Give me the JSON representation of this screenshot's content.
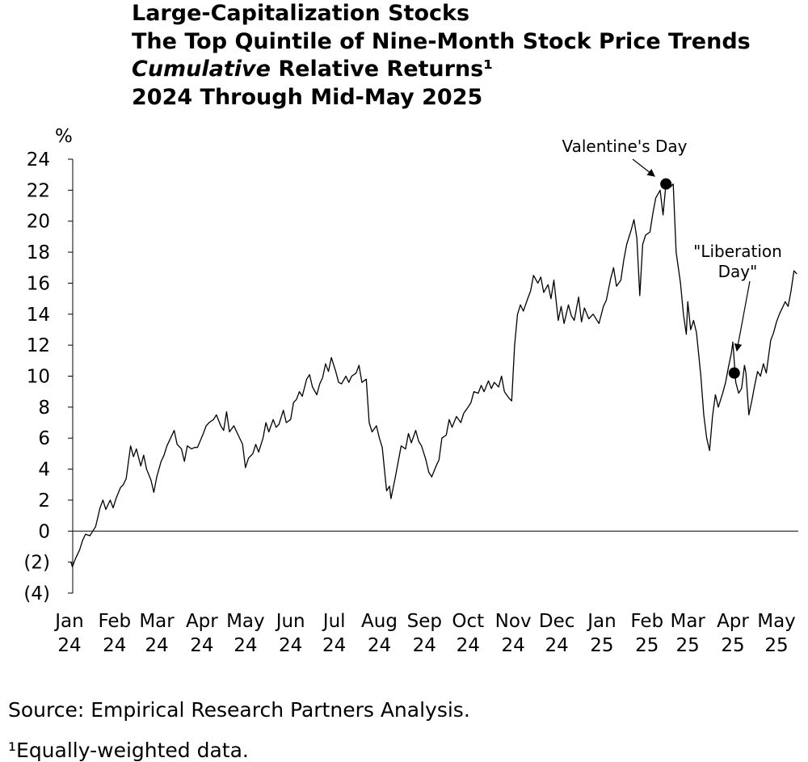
{
  "titles": {
    "line1": "Large-Capitalization Stocks",
    "line2": "The Top Quintile of Nine-Month Stock Price Trends",
    "line3_italic": "Cumulative",
    "line3_rest": " Relative Returns¹",
    "line4": "2024 Through Mid-May 2025"
  },
  "footnotes": {
    "source": "Source: Empirical Research Partners Analysis.",
    "note": "¹Equally-weighted data."
  },
  "chart_data": {
    "type": "line",
    "title": "Large-Capitalization Stocks — The Top Quintile of Nine-Month Stock Price Trends — Cumulative Relative Returns¹ — 2024 Through Mid-May 2025",
    "ylabel": "%",
    "ylim": [
      -4,
      24
    ],
    "yticks": [
      24,
      22,
      20,
      18,
      16,
      14,
      12,
      10,
      8,
      6,
      4,
      2,
      0,
      -2,
      -4
    ],
    "ytick_labels": [
      "24",
      "22",
      "20",
      "18",
      "16",
      "14",
      "12",
      "10",
      "8",
      "6",
      "4",
      "2",
      "0",
      "(2)",
      "(4)"
    ],
    "xlim": [
      "2024-01-01",
      "2025-05-16"
    ],
    "xtick_dates": [
      "2024-01-01",
      "2024-02-01",
      "2024-03-01",
      "2024-04-01",
      "2024-05-01",
      "2024-06-01",
      "2024-07-01",
      "2024-08-01",
      "2024-09-01",
      "2024-10-01",
      "2024-11-01",
      "2024-12-01",
      "2025-01-01",
      "2025-02-01",
      "2025-03-01",
      "2025-04-01",
      "2025-05-01"
    ],
    "xtick_month": [
      "Jan",
      "Feb",
      "Mar",
      "Apr",
      "May",
      "Jun",
      "Jul",
      "Aug",
      "Sep",
      "Oct",
      "Nov",
      "Dec",
      "Jan",
      "Feb",
      "Mar",
      "Apr",
      "May"
    ],
    "xtick_year": [
      "24",
      "24",
      "24",
      "24",
      "24",
      "24",
      "24",
      "24",
      "24",
      "24",
      "24",
      "24",
      "25",
      "25",
      "25",
      "25",
      "25"
    ],
    "grid": false,
    "zero_line": true,
    "series": [
      {
        "color": "#000000",
        "points": [
          [
            "2024-01-02",
            -2.0
          ],
          [
            "2024-01-03",
            -2.3
          ],
          [
            "2024-01-05",
            -1.8
          ],
          [
            "2024-01-08",
            -1.2
          ],
          [
            "2024-01-10",
            -0.6
          ],
          [
            "2024-01-12",
            -0.2
          ],
          [
            "2024-01-15",
            -0.3
          ],
          [
            "2024-01-17",
            0.0
          ],
          [
            "2024-01-19",
            0.3
          ],
          [
            "2024-01-22",
            1.5
          ],
          [
            "2024-01-24",
            2.0
          ],
          [
            "2024-01-26",
            1.4
          ],
          [
            "2024-01-29",
            2.0
          ],
          [
            "2024-01-31",
            1.5
          ],
          [
            "2024-02-02",
            2.1
          ],
          [
            "2024-02-05",
            2.8
          ],
          [
            "2024-02-07",
            3.0
          ],
          [
            "2024-02-09",
            3.4
          ],
          [
            "2024-02-12",
            5.5
          ],
          [
            "2024-02-14",
            4.8
          ],
          [
            "2024-02-16",
            5.3
          ],
          [
            "2024-02-19",
            4.2
          ],
          [
            "2024-02-21",
            4.9
          ],
          [
            "2024-02-23",
            4.0
          ],
          [
            "2024-02-26",
            3.3
          ],
          [
            "2024-02-28",
            2.5
          ],
          [
            "2024-03-01",
            3.5
          ],
          [
            "2024-03-04",
            4.5
          ],
          [
            "2024-03-06",
            4.9
          ],
          [
            "2024-03-08",
            5.5
          ],
          [
            "2024-03-11",
            6.1
          ],
          [
            "2024-03-13",
            6.5
          ],
          [
            "2024-03-15",
            5.6
          ],
          [
            "2024-03-18",
            5.3
          ],
          [
            "2024-03-20",
            4.5
          ],
          [
            "2024-03-22",
            5.5
          ],
          [
            "2024-03-25",
            5.3
          ],
          [
            "2024-03-27",
            5.4
          ],
          [
            "2024-03-29",
            5.4
          ],
          [
            "2024-04-02",
            6.3
          ],
          [
            "2024-04-04",
            6.8
          ],
          [
            "2024-04-06",
            7.0
          ],
          [
            "2024-04-09",
            7.2
          ],
          [
            "2024-04-11",
            7.5
          ],
          [
            "2024-04-14",
            6.8
          ],
          [
            "2024-04-16",
            6.5
          ],
          [
            "2024-04-18",
            7.7
          ],
          [
            "2024-04-20",
            6.4
          ],
          [
            "2024-04-23",
            6.8
          ],
          [
            "2024-04-26",
            6.2
          ],
          [
            "2024-04-29",
            5.6
          ],
          [
            "2024-05-01",
            4.1
          ],
          [
            "2024-05-03",
            4.7
          ],
          [
            "2024-05-06",
            5.0
          ],
          [
            "2024-05-08",
            5.6
          ],
          [
            "2024-05-10",
            5.1
          ],
          [
            "2024-05-13",
            6.0
          ],
          [
            "2024-05-15",
            7.0
          ],
          [
            "2024-05-17",
            6.4
          ],
          [
            "2024-05-20",
            7.2
          ],
          [
            "2024-05-22",
            6.7
          ],
          [
            "2024-05-24",
            6.9
          ],
          [
            "2024-05-27",
            7.8
          ],
          [
            "2024-05-29",
            7.0
          ],
          [
            "2024-06-01",
            7.2
          ],
          [
            "2024-06-03",
            8.3
          ],
          [
            "2024-06-05",
            8.5
          ],
          [
            "2024-06-07",
            9.0
          ],
          [
            "2024-06-09",
            8.7
          ],
          [
            "2024-06-12",
            9.8
          ],
          [
            "2024-06-14",
            10.1
          ],
          [
            "2024-06-16",
            9.3
          ],
          [
            "2024-06-19",
            8.8
          ],
          [
            "2024-06-21",
            9.5
          ],
          [
            "2024-06-23",
            9.9
          ],
          [
            "2024-06-25",
            10.8
          ],
          [
            "2024-06-27",
            10.3
          ],
          [
            "2024-06-29",
            11.2
          ],
          [
            "2024-07-02",
            10.3
          ],
          [
            "2024-07-04",
            9.6
          ],
          [
            "2024-07-06",
            9.5
          ],
          [
            "2024-07-09",
            10.0
          ],
          [
            "2024-07-11",
            9.6
          ],
          [
            "2024-07-13",
            10.0
          ],
          [
            "2024-07-16",
            10.2
          ],
          [
            "2024-07-18",
            10.7
          ],
          [
            "2024-07-20",
            9.6
          ],
          [
            "2024-07-23",
            9.8
          ],
          [
            "2024-07-25",
            7.0
          ],
          [
            "2024-07-27",
            6.4
          ],
          [
            "2024-07-30",
            6.8
          ],
          [
            "2024-08-01",
            6.0
          ],
          [
            "2024-08-03",
            5.4
          ],
          [
            "2024-08-05",
            3.5
          ],
          [
            "2024-08-06",
            2.6
          ],
          [
            "2024-08-08",
            2.9
          ],
          [
            "2024-08-09",
            2.1
          ],
          [
            "2024-08-12",
            3.5
          ],
          [
            "2024-08-14",
            4.5
          ],
          [
            "2024-08-16",
            5.5
          ],
          [
            "2024-08-19",
            5.3
          ],
          [
            "2024-08-21",
            6.3
          ],
          [
            "2024-08-23",
            5.7
          ],
          [
            "2024-08-26",
            6.5
          ],
          [
            "2024-08-28",
            5.8
          ],
          [
            "2024-08-30",
            5.5
          ],
          [
            "2024-09-02",
            4.6
          ],
          [
            "2024-09-04",
            3.8
          ],
          [
            "2024-09-06",
            3.5
          ],
          [
            "2024-09-09",
            4.2
          ],
          [
            "2024-09-11",
            4.6
          ],
          [
            "2024-09-13",
            6.0
          ],
          [
            "2024-09-16",
            6.2
          ],
          [
            "2024-09-18",
            7.2
          ],
          [
            "2024-09-20",
            6.7
          ],
          [
            "2024-09-23",
            7.4
          ],
          [
            "2024-09-26",
            7.0
          ],
          [
            "2024-09-28",
            7.6
          ],
          [
            "2024-10-01",
            8.0
          ],
          [
            "2024-10-03",
            8.3
          ],
          [
            "2024-10-05",
            9.0
          ],
          [
            "2024-10-08",
            8.9
          ],
          [
            "2024-10-10",
            9.4
          ],
          [
            "2024-10-12",
            9.0
          ],
          [
            "2024-10-15",
            9.7
          ],
          [
            "2024-10-17",
            9.2
          ],
          [
            "2024-10-19",
            9.6
          ],
          [
            "2024-10-22",
            9.3
          ],
          [
            "2024-10-24",
            10.0
          ],
          [
            "2024-10-26",
            9.0
          ],
          [
            "2024-10-29",
            8.6
          ],
          [
            "2024-10-31",
            8.4
          ],
          [
            "2024-11-02",
            12.0
          ],
          [
            "2024-11-04",
            14.0
          ],
          [
            "2024-11-06",
            14.6
          ],
          [
            "2024-11-08",
            14.2
          ],
          [
            "2024-11-11",
            15.0
          ],
          [
            "2024-11-13",
            15.5
          ],
          [
            "2024-11-15",
            16.5
          ],
          [
            "2024-11-18",
            16.0
          ],
          [
            "2024-11-20",
            16.4
          ],
          [
            "2024-11-22",
            15.4
          ],
          [
            "2024-11-25",
            15.9
          ],
          [
            "2024-11-27",
            15.0
          ],
          [
            "2024-11-29",
            16.2
          ],
          [
            "2024-12-02",
            13.6
          ],
          [
            "2024-12-04",
            14.5
          ],
          [
            "2024-12-06",
            13.4
          ],
          [
            "2024-12-09",
            14.6
          ],
          [
            "2024-12-11",
            13.9
          ],
          [
            "2024-12-13",
            13.6
          ],
          [
            "2024-12-16",
            15.1
          ],
          [
            "2024-12-18",
            13.5
          ],
          [
            "2024-12-20",
            14.4
          ],
          [
            "2024-12-23",
            13.7
          ],
          [
            "2024-12-26",
            14.0
          ],
          [
            "2024-12-30",
            13.4
          ],
          [
            "2025-01-02",
            14.5
          ],
          [
            "2025-01-04",
            14.9
          ],
          [
            "2025-01-07",
            16.3
          ],
          [
            "2025-01-09",
            17.0
          ],
          [
            "2025-01-11",
            15.8
          ],
          [
            "2025-01-14",
            16.2
          ],
          [
            "2025-01-16",
            17.5
          ],
          [
            "2025-01-18",
            18.5
          ],
          [
            "2025-01-21",
            19.4
          ],
          [
            "2025-01-23",
            20.1
          ],
          [
            "2025-01-25",
            18.9
          ],
          [
            "2025-01-27",
            15.2
          ],
          [
            "2025-01-29",
            18.5
          ],
          [
            "2025-01-31",
            19.1
          ],
          [
            "2025-02-03",
            19.3
          ],
          [
            "2025-02-05",
            20.5
          ],
          [
            "2025-02-07",
            21.5
          ],
          [
            "2025-02-10",
            22.0
          ],
          [
            "2025-02-12",
            20.4
          ],
          [
            "2025-02-14",
            22.4
          ],
          [
            "2025-02-17",
            22.2
          ],
          [
            "2025-02-19",
            22.4
          ],
          [
            "2025-02-21",
            18.0
          ],
          [
            "2025-02-24",
            16.0
          ],
          [
            "2025-02-26",
            14.0
          ],
          [
            "2025-02-28",
            12.7
          ],
          [
            "2025-03-01",
            14.8
          ],
          [
            "2025-03-03",
            13.0
          ],
          [
            "2025-03-05",
            13.6
          ],
          [
            "2025-03-07",
            12.8
          ],
          [
            "2025-03-10",
            10.0
          ],
          [
            "2025-03-12",
            7.5
          ],
          [
            "2025-03-14",
            6.0
          ],
          [
            "2025-03-16",
            5.2
          ],
          [
            "2025-03-18",
            7.4
          ],
          [
            "2025-03-20",
            8.8
          ],
          [
            "2025-03-22",
            8.0
          ],
          [
            "2025-03-25",
            8.9
          ],
          [
            "2025-03-27",
            9.6
          ],
          [
            "2025-03-29",
            10.6
          ],
          [
            "2025-03-31",
            11.5
          ],
          [
            "2025-04-01",
            12.2
          ],
          [
            "2025-04-03",
            9.6
          ],
          [
            "2025-04-05",
            8.9
          ],
          [
            "2025-04-07",
            9.2
          ],
          [
            "2025-04-09",
            10.7
          ],
          [
            "2025-04-10",
            10.2
          ],
          [
            "2025-04-12",
            7.5
          ],
          [
            "2025-04-14",
            8.4
          ],
          [
            "2025-04-16",
            9.4
          ],
          [
            "2025-04-18",
            10.3
          ],
          [
            "2025-04-20",
            10.0
          ],
          [
            "2025-04-22",
            10.8
          ],
          [
            "2025-04-24",
            10.2
          ],
          [
            "2025-04-27",
            12.3
          ],
          [
            "2025-04-29",
            12.8
          ],
          [
            "2025-05-01",
            13.5
          ],
          [
            "2025-05-03",
            14.0
          ],
          [
            "2025-05-05",
            14.4
          ],
          [
            "2025-05-07",
            14.8
          ],
          [
            "2025-05-09",
            14.5
          ],
          [
            "2025-05-11",
            15.5
          ],
          [
            "2025-05-13",
            16.8
          ],
          [
            "2025-05-15",
            16.6
          ]
        ]
      }
    ],
    "annotations": [
      {
        "lines": [
          "Valentine's Day"
        ],
        "date": "2025-02-14",
        "value": 22.4,
        "marker": "dot"
      },
      {
        "lines": [
          "\"Liberation",
          "Day\""
        ],
        "date": "2025-04-02",
        "value": 10.2,
        "marker": "dot"
      }
    ]
  }
}
